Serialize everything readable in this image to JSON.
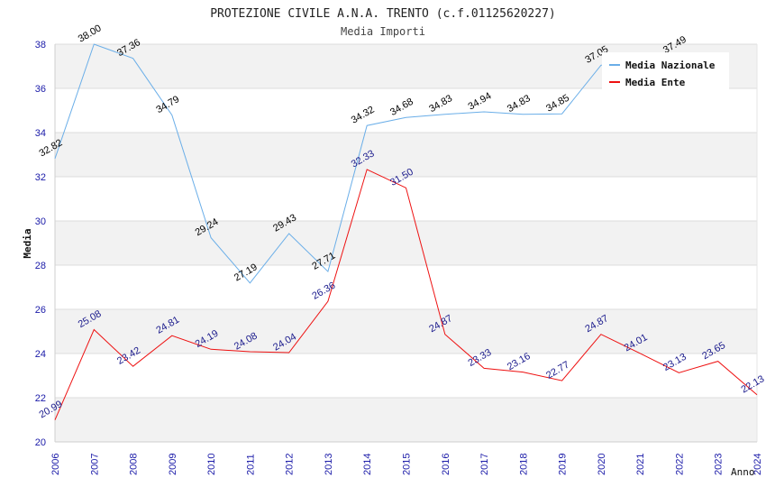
{
  "chart_data": {
    "type": "line",
    "title": "PROTEZIONE CIVILE A.N.A. TRENTO (c.f.01125620227)",
    "subtitle": "Media Importi",
    "ylabel": "Media",
    "xlabel": "Anno",
    "ylim": [
      20,
      38
    ],
    "yticks": [
      20,
      22,
      24,
      26,
      28,
      30,
      32,
      34,
      36,
      38
    ],
    "grid": true,
    "legend_position": "top-right",
    "x": [
      "2006",
      "2007",
      "2008",
      "2009",
      "2010",
      "2011",
      "2012",
      "2013",
      "2014",
      "2015",
      "2016",
      "2017",
      "2018",
      "2019",
      "2020",
      "2021",
      "2022",
      "2023",
      "2024"
    ],
    "series": [
      {
        "name": "Media Nazionale",
        "color": "#6aaee8",
        "label_color": "#000000",
        "values": [
          32.82,
          38.0,
          37.36,
          34.79,
          29.24,
          27.19,
          29.43,
          27.71,
          34.32,
          34.68,
          34.83,
          34.94,
          34.83,
          34.85,
          37.05,
          null,
          37.49,
          null,
          null
        ],
        "labels": [
          "32.82",
          "38.00",
          "37.36",
          "34.79",
          "29.24",
          "27.19",
          "29.43",
          "27.71",
          "34.32",
          "34.68",
          "34.83",
          "34.94",
          "34.83",
          "34.85",
          "37.05",
          null,
          "37.49",
          null,
          null
        ]
      },
      {
        "name": "Media Ente",
        "color": "#ee1111",
        "label_color": "#1a1a8c",
        "values": [
          20.99,
          25.08,
          23.42,
          24.81,
          24.19,
          24.08,
          24.04,
          26.36,
          32.33,
          31.5,
          24.87,
          23.33,
          23.16,
          22.77,
          24.87,
          24.01,
          23.13,
          23.65,
          22.13
        ],
        "labels": [
          "20.99",
          "25.08",
          "23.42",
          "24.81",
          "24.19",
          "24.08",
          "24.04",
          "26.36",
          "32.33",
          "31.50",
          "24.87",
          "23.33",
          "23.16",
          "22.77",
          "24.87",
          "24.01",
          "23.13",
          "23.65",
          "22.13"
        ]
      }
    ]
  }
}
